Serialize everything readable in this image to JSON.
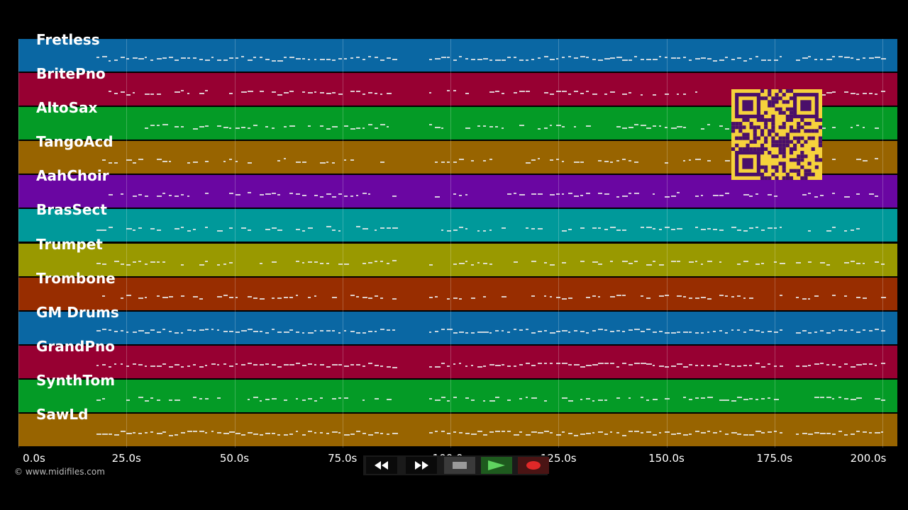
{
  "tracks": [
    {
      "name": "Fretless",
      "color": "#0a67a3"
    },
    {
      "name": "BritePno",
      "color": "#970032"
    },
    {
      "name": "AltoSax",
      "color": "#049b26"
    },
    {
      "name": "TangoAcd",
      "color": "#986400"
    },
    {
      "name": "AahChoir",
      "color": "#6a06a2"
    },
    {
      "name": "BrasSect",
      "color": "#00999a"
    },
    {
      "name": "Trumpet",
      "color": "#999900"
    },
    {
      "name": "Trombone",
      "color": "#982d00"
    },
    {
      "name": "GM Drums",
      "color": "#0a67a3"
    },
    {
      "name": "GrandPno",
      "color": "#970032"
    },
    {
      "name": "SynthTom",
      "color": "#049b26"
    },
    {
      "name": "SawLd",
      "color": "#986400"
    }
  ],
  "timeline": {
    "ticks": [
      "0.0s",
      "25.0s",
      "50.0s",
      "75.0s",
      "100.0s",
      "125.0s",
      "150.0s",
      "175.0s",
      "200.0s"
    ],
    "max_seconds": 200
  },
  "copyright": "© www.midifiles.com",
  "qr_code": {
    "color": "#f6d23c",
    "module_color": "#4a0f6a"
  },
  "transport": {
    "rewind_icon": "rewind-icon",
    "fast_forward_icon": "fast-forward-icon",
    "stop_icon": "stop-icon",
    "play_icon": "play-icon",
    "record_icon": "record-icon"
  }
}
